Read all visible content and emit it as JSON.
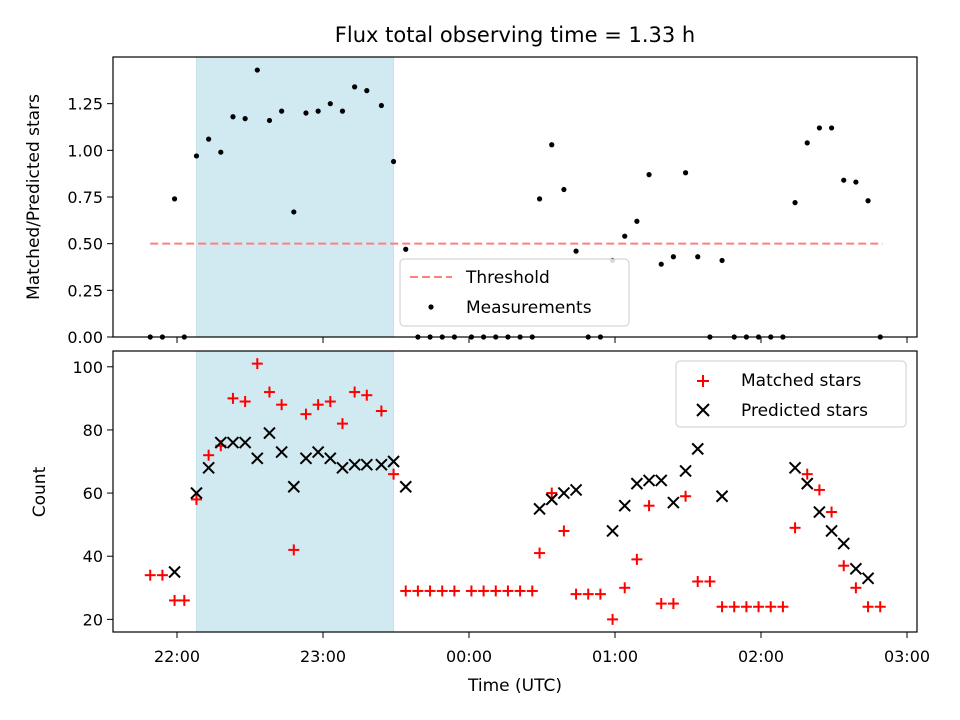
{
  "chart_data": {
    "title": "Flux total observing time = 1.33 h",
    "xlabel": "Time (UTC)",
    "x_tick_labels": [
      "22:00",
      "23:00",
      "00:00",
      "01:00",
      "02:00",
      "03:00"
    ],
    "highlight_span": {
      "start": "22:08",
      "end": "23:29",
      "color": "#add8e6"
    },
    "panels": [
      {
        "type": "scatter",
        "ylabel": "Matched/Predicted stars",
        "ylim": [
          0,
          1.5
        ],
        "yticks": [
          0,
          0.25,
          0.5,
          0.75,
          1.0,
          1.25
        ],
        "ytick_labels": [
          "0.00",
          "0.25",
          "0.50",
          "0.75",
          "1.00",
          "1.25"
        ],
        "legend_position": "lower-center",
        "series": [
          {
            "name": "Threshold",
            "kind": "dashed-line",
            "color": "#ff7f7f",
            "x": [
              "21:49",
              "26:50"
            ],
            "y": [
              0.5,
              0.5
            ]
          },
          {
            "name": "Measurements",
            "kind": "dot",
            "color": "#000000",
            "points": [
              [
                "21:49",
                0.0
              ],
              [
                "21:54",
                0.0
              ],
              [
                "21:59",
                0.74
              ],
              [
                "22:03",
                0.0
              ],
              [
                "22:08",
                0.97
              ],
              [
                "22:13",
                1.06
              ],
              [
                "22:18",
                0.99
              ],
              [
                "22:23",
                1.18
              ],
              [
                "22:28",
                1.17
              ],
              [
                "22:33",
                1.43
              ],
              [
                "22:38",
                1.16
              ],
              [
                "22:43",
                1.21
              ],
              [
                "22:48",
                0.67
              ],
              [
                "22:53",
                1.2
              ],
              [
                "22:58",
                1.21
              ],
              [
                "23:03",
                1.25
              ],
              [
                "23:08",
                1.21
              ],
              [
                "23:13",
                1.34
              ],
              [
                "23:18",
                1.32
              ],
              [
                "23:24",
                1.24
              ],
              [
                "23:29",
                0.94
              ],
              [
                "23:34",
                0.47
              ],
              [
                "23:39",
                0.0
              ],
              [
                "23:44",
                0.0
              ],
              [
                "23:49",
                0.0
              ],
              [
                "23:54",
                0.0
              ],
              [
                "24:01",
                0.0
              ],
              [
                "24:06",
                0.0
              ],
              [
                "24:11",
                0.0
              ],
              [
                "24:16",
                0.0
              ],
              [
                "24:21",
                0.0
              ],
              [
                "24:26",
                0.0
              ],
              [
                "24:29",
                0.74
              ],
              [
                "24:34",
                1.03
              ],
              [
                "24:39",
                0.79
              ],
              [
                "24:44",
                0.46
              ],
              [
                "24:49",
                0.0
              ],
              [
                "24:54",
                0.0
              ],
              [
                "24:59",
                0.41
              ],
              [
                "25:04",
                0.54
              ],
              [
                "25:09",
                0.62
              ],
              [
                "25:14",
                0.87
              ],
              [
                "25:19",
                0.39
              ],
              [
                "25:24",
                0.43
              ],
              [
                "25:29",
                0.88
              ],
              [
                "25:34",
                0.43
              ],
              [
                "25:39",
                0.0
              ],
              [
                "25:44",
                0.41
              ],
              [
                "25:49",
                0.0
              ],
              [
                "25:54",
                0.0
              ],
              [
                "25:59",
                0.0
              ],
              [
                "26:04",
                0.0
              ],
              [
                "26:09",
                0.0
              ],
              [
                "26:14",
                0.72
              ],
              [
                "26:19",
                1.04
              ],
              [
                "26:24",
                1.12
              ],
              [
                "26:29",
                1.12
              ],
              [
                "26:34",
                0.84
              ],
              [
                "26:39",
                0.83
              ],
              [
                "26:44",
                0.73
              ],
              [
                "26:49",
                0.0
              ]
            ]
          }
        ]
      },
      {
        "type": "scatter",
        "ylabel": "Count",
        "ylim": [
          16,
          105
        ],
        "yticks": [
          20,
          40,
          60,
          80,
          100
        ],
        "ytick_labels": [
          "20",
          "40",
          "60",
          "80",
          "100"
        ],
        "legend_position": "upper-right",
        "series": [
          {
            "name": "Matched stars",
            "marker": "+",
            "color": "#ff0000",
            "points": [
              [
                "21:49",
                34
              ],
              [
                "21:54",
                34
              ],
              [
                "21:59",
                26
              ],
              [
                "22:03",
                26
              ],
              [
                "22:08",
                58
              ],
              [
                "22:13",
                72
              ],
              [
                "22:18",
                75
              ],
              [
                "22:23",
                90
              ],
              [
                "22:28",
                89
              ],
              [
                "22:33",
                101
              ],
              [
                "22:38",
                92
              ],
              [
                "22:43",
                88
              ],
              [
                "22:48",
                42
              ],
              [
                "22:53",
                85
              ],
              [
                "22:58",
                88
              ],
              [
                "23:03",
                89
              ],
              [
                "23:08",
                82
              ],
              [
                "23:13",
                92
              ],
              [
                "23:18",
                91
              ],
              [
                "23:24",
                86
              ],
              [
                "23:29",
                66
              ],
              [
                "23:34",
                29
              ],
              [
                "23:39",
                29
              ],
              [
                "23:44",
                29
              ],
              [
                "23:49",
                29
              ],
              [
                "23:54",
                29
              ],
              [
                "24:01",
                29
              ],
              [
                "24:06",
                29
              ],
              [
                "24:11",
                29
              ],
              [
                "24:16",
                29
              ],
              [
                "24:21",
                29
              ],
              [
                "24:26",
                29
              ],
              [
                "24:29",
                41
              ],
              [
                "24:34",
                60
              ],
              [
                "24:39",
                48
              ],
              [
                "24:44",
                28
              ],
              [
                "24:49",
                28
              ],
              [
                "24:54",
                28
              ],
              [
                "24:59",
                20
              ],
              [
                "25:04",
                30
              ],
              [
                "25:09",
                39
              ],
              [
                "25:14",
                56
              ],
              [
                "25:19",
                25
              ],
              [
                "25:24",
                25
              ],
              [
                "25:29",
                59
              ],
              [
                "25:34",
                32
              ],
              [
                "25:39",
                32
              ],
              [
                "25:44",
                24
              ],
              [
                "25:49",
                24
              ],
              [
                "25:54",
                24
              ],
              [
                "25:59",
                24
              ],
              [
                "26:04",
                24
              ],
              [
                "26:09",
                24
              ],
              [
                "26:14",
                49
              ],
              [
                "26:19",
                66
              ],
              [
                "26:24",
                61
              ],
              [
                "26:29",
                54
              ],
              [
                "26:34",
                37
              ],
              [
                "26:39",
                30
              ],
              [
                "26:44",
                24
              ],
              [
                "26:49",
                24
              ]
            ]
          },
          {
            "name": "Predicted stars",
            "marker": "x",
            "color": "#000000",
            "points": [
              [
                "21:59",
                35
              ],
              [
                "22:08",
                60
              ],
              [
                "22:13",
                68
              ],
              [
                "22:18",
                76
              ],
              [
                "22:23",
                76
              ],
              [
                "22:28",
                76
              ],
              [
                "22:33",
                71
              ],
              [
                "22:38",
                79
              ],
              [
                "22:43",
                73
              ],
              [
                "22:48",
                62
              ],
              [
                "22:53",
                71
              ],
              [
                "22:58",
                73
              ],
              [
                "23:03",
                71
              ],
              [
                "23:08",
                68
              ],
              [
                "23:13",
                69
              ],
              [
                "23:18",
                69
              ],
              [
                "23:24",
                69
              ],
              [
                "23:29",
                70
              ],
              [
                "23:34",
                62
              ],
              [
                "24:29",
                55
              ],
              [
                "24:34",
                58
              ],
              [
                "24:39",
                60
              ],
              [
                "24:44",
                61
              ],
              [
                "24:59",
                48
              ],
              [
                "25:04",
                56
              ],
              [
                "25:09",
                63
              ],
              [
                "25:14",
                64
              ],
              [
                "25:19",
                64
              ],
              [
                "25:24",
                57
              ],
              [
                "25:29",
                67
              ],
              [
                "25:34",
                74
              ],
              [
                "25:44",
                59
              ],
              [
                "26:14",
                68
              ],
              [
                "26:19",
                63
              ],
              [
                "26:24",
                54
              ],
              [
                "26:29",
                48
              ],
              [
                "26:34",
                44
              ],
              [
                "26:39",
                36
              ],
              [
                "26:44",
                33
              ]
            ]
          }
        ]
      }
    ]
  }
}
